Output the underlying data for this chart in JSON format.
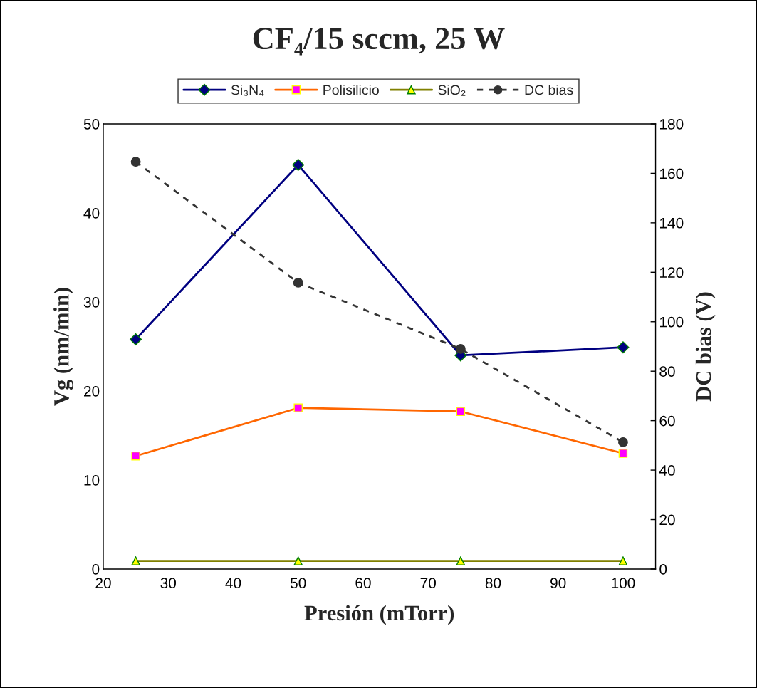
{
  "chart_data": {
    "type": "line",
    "title": "CF₄/15 sccm, 25 W",
    "xlabel": "Presión (mTorr)",
    "ylabel": "Vg (nm/min)",
    "y2label": "DC bias (V)",
    "x": [
      25,
      50,
      75,
      100
    ],
    "series": [
      {
        "name": "Si₃N₄",
        "color": "#000080",
        "marker": "diamond",
        "values": [
          25.8,
          45.4,
          24.0,
          24.9
        ]
      },
      {
        "name": "Polisilicio",
        "color": "#ff6600",
        "marker": "square",
        "values": [
          12.7,
          18.1,
          17.7,
          13.0
        ]
      },
      {
        "name": "SiO₂",
        "color": "#808000",
        "marker": "triangle",
        "values": [
          0.9,
          0.9,
          0.9,
          0.9
        ]
      },
      {
        "name": "DC bias",
        "color": "#333333",
        "marker": "circle",
        "line_style": "dashed",
        "axis": "y2",
        "values": [
          164.7,
          115.8,
          89.0,
          51.3
        ]
      }
    ],
    "xlim": [
      20,
      105
    ],
    "xticks": [
      20,
      30,
      40,
      50,
      60,
      70,
      80,
      90,
      100
    ],
    "ylim": [
      0,
      50
    ],
    "yticks": [
      0,
      10,
      20,
      30,
      40,
      50
    ],
    "y2lim": [
      0,
      180
    ],
    "y2ticks": [
      0,
      20,
      40,
      60,
      80,
      100,
      120,
      140,
      160,
      180
    ],
    "grid": false,
    "legend": "top"
  }
}
